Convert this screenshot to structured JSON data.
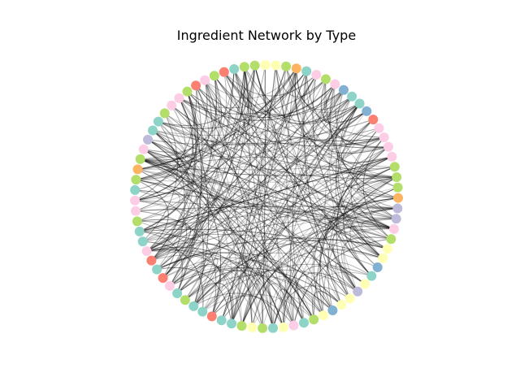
{
  "title": "Ingredient Network by Type",
  "colors": {
    "teal": "#8dd3c7",
    "yellow": "#ffffb3",
    "lavender": "#bebada",
    "red": "#fb8072",
    "blue": "#80b1d3",
    "orange": "#fdb462",
    "green": "#b3de69",
    "pink": "#fccde5",
    "edge": "#000000"
  },
  "node_types": [
    "yellow",
    "green",
    "orange",
    "teal",
    "pink",
    "green",
    "pink",
    "blue",
    "teal",
    "teal",
    "blue",
    "red",
    "pink",
    "pink",
    "pink",
    "pink",
    "green",
    "green",
    "green",
    "orange",
    "lavender",
    "lavender",
    "pink",
    "green",
    "yellow",
    "yellow",
    "blue",
    "teal",
    "yellow",
    "lavender",
    "yellow",
    "yellow",
    "blue",
    "yellow",
    "green",
    "teal",
    "pink",
    "yellow",
    "teal",
    "green",
    "yellow",
    "green",
    "teal",
    "teal",
    "red",
    "teal",
    "teal",
    "green",
    "teal",
    "pink",
    "red",
    "teal",
    "red",
    "pink",
    "teal",
    "teal",
    "green",
    "pink",
    "pink",
    "teal",
    "green",
    "orange",
    "green",
    "pink",
    "lavender",
    "teal",
    "teal",
    "green",
    "pink",
    "pink",
    "green",
    "red",
    "pink",
    "green",
    "red",
    "teal",
    "green",
    "green",
    "yellow"
  ],
  "edge_count": 340
}
